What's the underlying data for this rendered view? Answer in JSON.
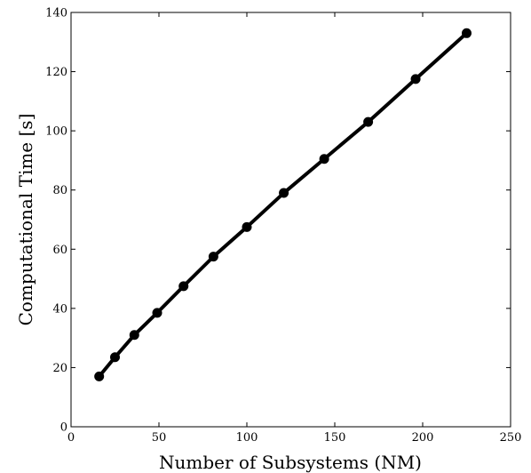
{
  "chart_data": {
    "type": "line",
    "title": "",
    "xlabel": "Number of Subsystems (NM)",
    "ylabel": "Computational Time [s]",
    "xlim": [
      0,
      250
    ],
    "ylim": [
      0,
      140
    ],
    "xticks": [
      "0",
      "50",
      "100",
      "150",
      "200",
      "250"
    ],
    "yticks": [
      "0",
      "20",
      "40",
      "60",
      "80",
      "100",
      "120",
      "140"
    ],
    "grid": false,
    "legend": "none",
    "series": [
      {
        "x": [
          16,
          25,
          36,
          49,
          64,
          81,
          100,
          121,
          144,
          169,
          196,
          225
        ],
        "y": [
          17,
          23.5,
          31,
          38.5,
          47.5,
          57.5,
          67.5,
          79,
          90.5,
          103,
          117.5,
          133
        ],
        "color": "#000000",
        "marker": "circle"
      }
    ]
  }
}
